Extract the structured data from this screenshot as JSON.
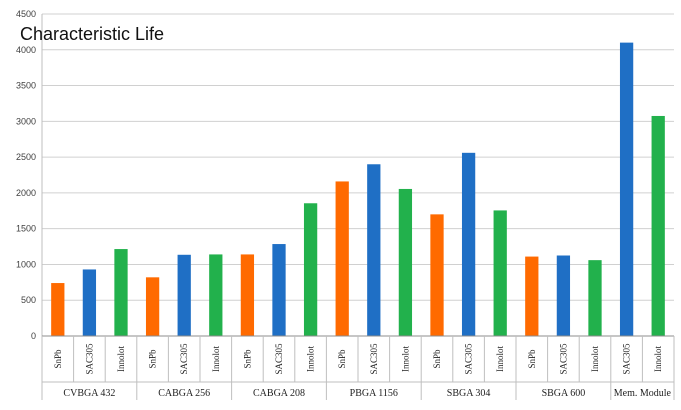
{
  "chart_data": {
    "type": "bar",
    "title": "Characteristic Life",
    "xlabel": "",
    "ylabel": "",
    "ylim": [
      0,
      4500
    ],
    "yticks": [
      0,
      500,
      1000,
      1500,
      2000,
      2500,
      3000,
      3500,
      4000,
      4500
    ],
    "grid": true,
    "legend": "none",
    "groups": [
      {
        "name": "CVBGA 432",
        "bars": [
          {
            "label": "SnPb",
            "value": 740,
            "color": "#FF6A00"
          },
          {
            "label": "SAC305",
            "value": 930,
            "color": "#1F6FC5"
          },
          {
            "label": "Innolot",
            "value": 1215,
            "color": "#22B14C"
          }
        ]
      },
      {
        "name": "CABGA 256",
        "bars": [
          {
            "label": "SnPb",
            "value": 820,
            "color": "#FF6A00"
          },
          {
            "label": "SAC305",
            "value": 1135,
            "color": "#1F6FC5"
          },
          {
            "label": "Innolot",
            "value": 1140,
            "color": "#22B14C"
          }
        ]
      },
      {
        "name": "CABGA 208",
        "bars": [
          {
            "label": "SnPb",
            "value": 1140,
            "color": "#FF6A00"
          },
          {
            "label": "SAC305",
            "value": 1285,
            "color": "#1F6FC5"
          },
          {
            "label": "Innolot",
            "value": 1855,
            "color": "#22B14C"
          }
        ]
      },
      {
        "name": "PBGA 1156",
        "bars": [
          {
            "label": "SnPb",
            "value": 2160,
            "color": "#FF6A00"
          },
          {
            "label": "SAC305",
            "value": 2400,
            "color": "#1F6FC5"
          },
          {
            "label": "Innolot",
            "value": 2055,
            "color": "#22B14C"
          }
        ]
      },
      {
        "name": "SBGA 304",
        "bars": [
          {
            "label": "SnPb",
            "value": 1700,
            "color": "#FF6A00"
          },
          {
            "label": "SAC305",
            "value": 2560,
            "color": "#1F6FC5"
          },
          {
            "label": "Innolot",
            "value": 1755,
            "color": "#22B14C"
          }
        ]
      },
      {
        "name": "SBGA 600",
        "bars": [
          {
            "label": "SnPb",
            "value": 1110,
            "color": "#FF6A00"
          },
          {
            "label": "SAC305",
            "value": 1125,
            "color": "#1F6FC5"
          },
          {
            "label": "Innolot",
            "value": 1060,
            "color": "#22B14C"
          }
        ]
      },
      {
        "name": "Mem. Module",
        "bars": [
          {
            "label": "SAC305",
            "value": 4100,
            "color": "#1F6FC5"
          },
          {
            "label": "Innolot",
            "value": 3075,
            "color": "#22B14C"
          }
        ]
      }
    ]
  }
}
